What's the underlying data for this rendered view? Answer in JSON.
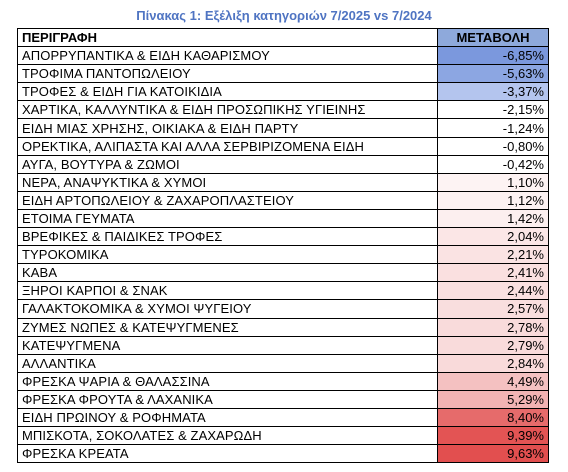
{
  "title": "Πίνακας 1: Εξέλιξη κατηγοριών 7/2025 vs 7/2024",
  "columns": {
    "description": "ΠΕΡΙΓΡΑΦΗ",
    "change": "ΜΕΤΑΒΟΛΗ"
  },
  "colors": {
    "title": "#4f74c2",
    "header_change_bg": "#8ea9db"
  },
  "rows": [
    {
      "label": "ΑΠΟΡΡΥΠΑΝΤΙΚΑ & ΕΙΔΗ ΚΑΘΑΡΙΣΜΟΥ",
      "change": "-6,85%",
      "value": -6.85,
      "bg": "#7b98dd"
    },
    {
      "label": "ΤΡΟΦΙΜΑ ΠΑΝΤΟΠΩΛΕΙΟΥ",
      "change": "-5,63%",
      "value": -5.63,
      "bg": "#8ca6e2"
    },
    {
      "label": "ΤΡΟΦΕΣ & ΕΙΔΗ ΓΙΑ ΚΑΤΟΙΚΙΔΙΑ",
      "change": "-3,37%",
      "value": -3.37,
      "bg": "#b4c5ee"
    },
    {
      "label": "ΧΑΡΤΙΚΑ, ΚΑΛΛΥΝΤΙΚΑ & ΕΙΔΗ ΠΡΟΣΩΠΙΚΗΣ ΥΓΙΕΙΝΗΣ",
      "change": "-2,15%",
      "value": -2.15,
      "bg": "#ffffff"
    },
    {
      "label": "ΕΙΔΗ ΜΙΑΣ ΧΡΗΣΗΣ, ΟΙΚΙΑΚΑ & ΕΙΔΗ ΠΑΡΤΥ",
      "change": "-1,24%",
      "value": -1.24,
      "bg": "#ffffff"
    },
    {
      "label": "ΟΡΕΚΤΙΚΑ, ΑΛΙΠΑΣΤΑ ΚΑΙ ΑΛΛΑ ΣΕΡΒΙΡΙΖΟΜΕΝΑ ΕΙΔΗ",
      "change": "-0,80%",
      "value": -0.8,
      "bg": "#ffffff"
    },
    {
      "label": "ΑΥΓΑ, ΒΟΥΤΥΡΑ & ΖΩΜΟΙ",
      "change": "-0,42%",
      "value": -0.42,
      "bg": "#ffffff"
    },
    {
      "label": "ΝΕΡΑ, ΑΝΑΨΥΚΤΙΚΑ & ΧΥΜΟΙ",
      "change": "1,10%",
      "value": 1.1,
      "bg": "#fdf3f3"
    },
    {
      "label": "ΕΙΔΗ ΑΡΤΟΠΩΛΕΙΟΥ & ΖΑΧΑΡΟΠΛΑΣΤΕΙΟΥ",
      "change": "1,12%",
      "value": 1.12,
      "bg": "#fdf2f2"
    },
    {
      "label": "ΕΤΟΙΜΑ ΓΕΥΜΑΤΑ",
      "change": "1,42%",
      "value": 1.42,
      "bg": "#fcefef"
    },
    {
      "label": "ΒΡΕΦΙΚΕΣ & ΠΑΙΔΙΚΕΣ ΤΡΟΦΕΣ",
      "change": "2,04%",
      "value": 2.04,
      "bg": "#fbe6e6"
    },
    {
      "label": "ΤΥΡΟΚΟΜΙΚΑ",
      "change": "2,21%",
      "value": 2.21,
      "bg": "#fae3e3"
    },
    {
      "label": "ΚΑΒΑ",
      "change": "2,41%",
      "value": 2.41,
      "bg": "#fae0e0"
    },
    {
      "label": "ΞΗΡΟΙ ΚΑΡΠΟΙ & ΣΝΑΚ",
      "change": "2,44%",
      "value": 2.44,
      "bg": "#fae0e0"
    },
    {
      "label": "ΓΑΛΑΚΤΟΚΟΜΙΚΑ & ΧΥΜΟΙ ΨΥΓΕΙΟΥ",
      "change": "2,57%",
      "value": 2.57,
      "bg": "#f9dede"
    },
    {
      "label": "ΖΥΜΕΣ ΝΩΠΕΣ & ΚΑΤΕΨΥΓΜΕΝΕΣ",
      "change": "2,78%",
      "value": 2.78,
      "bg": "#f9dbdb"
    },
    {
      "label": "ΚΑΤΕΨΥΓΜΕΝΑ",
      "change": "2,79%",
      "value": 2.79,
      "bg": "#f9dbdb"
    },
    {
      "label": "ΑΛΛΑΝΤΙΚΑ",
      "change": "2,84%",
      "value": 2.84,
      "bg": "#f9dada"
    },
    {
      "label": "ΦΡΕΣΚΑ ΨΑΡΙΑ & ΘΑΛΑΣΣΙΝΑ",
      "change": "4,49%",
      "value": 4.49,
      "bg": "#f4c1c1"
    },
    {
      "label": "ΦΡΕΣΚΑ ΦΡΟΥΤΑ & ΛΑΧΑΝΙΚΑ",
      "change": "5,29%",
      "value": 5.29,
      "bg": "#f2b3b3"
    },
    {
      "label": "ΕΙΔΗ ΠΡΩΙΝΟΥ & ΡΟΦΗΜΑΤΑ",
      "change": "8,40%",
      "value": 8.4,
      "bg": "#e66b6b"
    },
    {
      "label": "ΜΠΙΣΚΟΤΑ, ΣΟΚΟΛΑΤΕΣ & ΖΑΧΑΡΩΔΗ",
      "change": "9,39%",
      "value": 9.39,
      "bg": "#e35454"
    },
    {
      "label": "ΦΡΕΣΚΑ ΚΡΕΑΤΑ",
      "change": "9,63%",
      "value": 9.63,
      "bg": "#e24f4f"
    }
  ]
}
